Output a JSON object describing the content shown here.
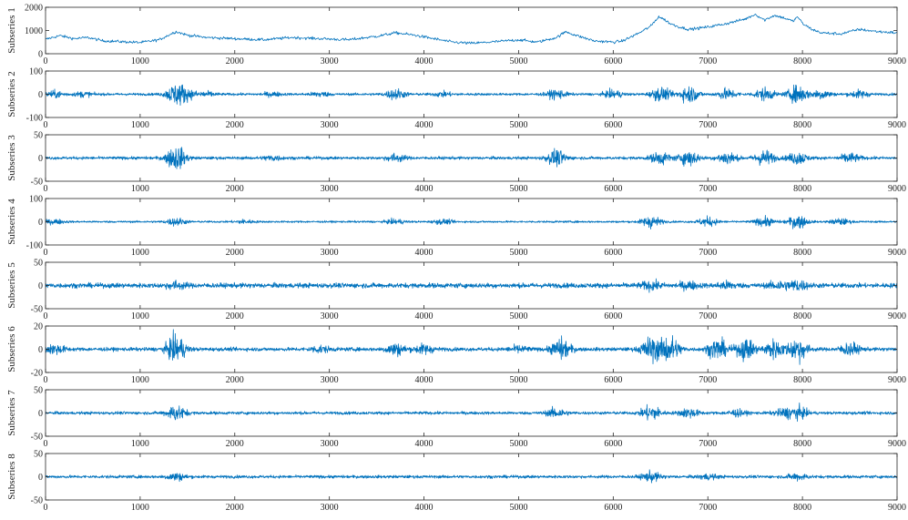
{
  "chart_data": [
    {
      "type": "line",
      "ylabel": "Subseries 1",
      "xlim": [
        0,
        9000
      ],
      "ylim": [
        0,
        2000
      ],
      "xticks": [
        "0",
        "1000",
        "2000",
        "3000",
        "4000",
        "5000",
        "6000",
        "7000",
        "8000",
        "9000"
      ],
      "yticks": [
        {
          "value": 0,
          "label": "0"
        },
        {
          "value": 1000,
          "label": "1000"
        },
        {
          "value": 2000,
          "label": "2000"
        }
      ],
      "line_color": "#0072BD",
      "series": [
        {
          "x": [
            0,
            150,
            300,
            450,
            600,
            800,
            1000,
            1200,
            1350,
            1380,
            1500,
            1700,
            2000,
            2300,
            2600,
            2900,
            3200,
            3500,
            3700,
            3900,
            4100,
            4300,
            4500,
            4700,
            5000,
            5200,
            5400,
            5500,
            5600,
            5800,
            6000,
            6100,
            6200,
            6300,
            6400,
            6480,
            6550,
            6600,
            6700,
            6800,
            7000,
            7200,
            7400,
            7500,
            7600,
            7700,
            7800,
            7900,
            7950,
            8000,
            8100,
            8200,
            8400,
            8600,
            8800,
            9000
          ],
          "y": [
            620,
            780,
            650,
            700,
            560,
            520,
            480,
            600,
            900,
            950,
            800,
            700,
            650,
            600,
            700,
            650,
            600,
            750,
            900,
            800,
            650,
            500,
            450,
            500,
            600,
            500,
            700,
            950,
            800,
            550,
            500,
            550,
            750,
            950,
            1200,
            1600,
            1450,
            1300,
            1150,
            1050,
            1150,
            1300,
            1500,
            1700,
            1450,
            1650,
            1550,
            1400,
            1600,
            1300,
            1050,
            900,
            850,
            1050,
            950,
            900
          ]
        }
      ],
      "noise": 60,
      "bursts": []
    },
    {
      "type": "line",
      "ylabel": "Subseries 2",
      "xlim": [
        0,
        9000
      ],
      "ylim": [
        -100,
        100
      ],
      "xticks": [
        "0",
        "1000",
        "2000",
        "3000",
        "4000",
        "5000",
        "6000",
        "7000",
        "8000",
        "9000"
      ],
      "yticks": [
        {
          "value": -100,
          "label": "-100"
        },
        {
          "value": 0,
          "label": "0"
        },
        {
          "value": 100,
          "label": "100"
        }
      ],
      "line_color": "#0072BD",
      "base_amplitude": 5,
      "bursts": [
        {
          "x": 100,
          "amp": 20
        },
        {
          "x": 400,
          "amp": 15
        },
        {
          "x": 1380,
          "amp": 70
        },
        {
          "x": 1500,
          "amp": 25
        },
        {
          "x": 1700,
          "amp": 15
        },
        {
          "x": 2400,
          "amp": 12
        },
        {
          "x": 2900,
          "amp": 15
        },
        {
          "x": 3700,
          "amp": 35
        },
        {
          "x": 4200,
          "amp": 15
        },
        {
          "x": 5400,
          "amp": 30
        },
        {
          "x": 6000,
          "amp": 25
        },
        {
          "x": 6500,
          "amp": 45
        },
        {
          "x": 6800,
          "amp": 55
        },
        {
          "x": 7200,
          "amp": 35
        },
        {
          "x": 7600,
          "amp": 40
        },
        {
          "x": 7950,
          "amp": 60
        },
        {
          "x": 8200,
          "amp": 30
        },
        {
          "x": 8600,
          "amp": 25
        }
      ]
    },
    {
      "type": "line",
      "ylabel": "Subseries 3",
      "xlim": [
        0,
        9000
      ],
      "ylim": [
        -50,
        50
      ],
      "xticks": [
        "0",
        "1000",
        "2000",
        "3000",
        "4000",
        "5000",
        "6000",
        "7000",
        "8000",
        "9000"
      ],
      "yticks": [
        {
          "value": -50,
          "label": "-50"
        },
        {
          "value": 0,
          "label": "0"
        },
        {
          "value": 50,
          "label": "50"
        }
      ],
      "line_color": "#0072BD",
      "base_amplitude": 3,
      "bursts": [
        {
          "x": 1380,
          "amp": 40
        },
        {
          "x": 2400,
          "amp": 8
        },
        {
          "x": 3700,
          "amp": 12
        },
        {
          "x": 5400,
          "amp": 25
        },
        {
          "x": 6500,
          "amp": 20
        },
        {
          "x": 6800,
          "amp": 25
        },
        {
          "x": 7200,
          "amp": 20
        },
        {
          "x": 7600,
          "amp": 25
        },
        {
          "x": 7950,
          "amp": 20
        },
        {
          "x": 8500,
          "amp": 15
        }
      ]
    },
    {
      "type": "line",
      "ylabel": "Subseries 4",
      "xlim": [
        0,
        9000
      ],
      "ylim": [
        -100,
        100
      ],
      "xticks": [
        "0",
        "1000",
        "2000",
        "3000",
        "4000",
        "5000",
        "6000",
        "7000",
        "8000",
        "9000"
      ],
      "yticks": [
        {
          "value": -100,
          "label": "-100"
        },
        {
          "value": 0,
          "label": "0"
        },
        {
          "value": 100,
          "label": "100"
        }
      ],
      "line_color": "#0072BD",
      "base_amplitude": 4,
      "bursts": [
        {
          "x": 100,
          "amp": 15
        },
        {
          "x": 1380,
          "amp": 25
        },
        {
          "x": 2100,
          "amp": 12
        },
        {
          "x": 3700,
          "amp": 15
        },
        {
          "x": 4200,
          "amp": 15
        },
        {
          "x": 6400,
          "amp": 40
        },
        {
          "x": 7000,
          "amp": 30
        },
        {
          "x": 7600,
          "amp": 30
        },
        {
          "x": 7950,
          "amp": 45
        },
        {
          "x": 8400,
          "amp": 20
        }
      ]
    },
    {
      "type": "line",
      "ylabel": "Subseries 5",
      "xlim": [
        0,
        9000
      ],
      "ylim": [
        -50,
        50
      ],
      "xticks": [
        "0",
        "1000",
        "2000",
        "3000",
        "4000",
        "5000",
        "6000",
        "7000",
        "8000",
        "9000"
      ],
      "yticks": [
        {
          "value": -50,
          "label": "-50"
        },
        {
          "value": 0,
          "label": "0"
        },
        {
          "value": 50,
          "label": "50"
        }
      ],
      "line_color": "#0072BD",
      "base_amplitude": 5,
      "bursts": [
        {
          "x": 1380,
          "amp": 10
        },
        {
          "x": 6400,
          "amp": 12
        },
        {
          "x": 6800,
          "amp": 10
        },
        {
          "x": 7200,
          "amp": 10
        },
        {
          "x": 7750,
          "amp": 12
        },
        {
          "x": 7950,
          "amp": 15
        }
      ]
    },
    {
      "type": "line",
      "ylabel": "Subseries 6",
      "xlim": [
        0,
        9000
      ],
      "ylim": [
        -20,
        20
      ],
      "xticks": [
        "0",
        "1000",
        "2000",
        "3000",
        "4000",
        "5000",
        "6000",
        "7000",
        "8000",
        "9000"
      ],
      "yticks": [
        {
          "value": -20,
          "label": "-20"
        },
        {
          "value": 0,
          "label": "0"
        },
        {
          "value": 20,
          "label": "20"
        }
      ],
      "line_color": "#0072BD",
      "base_amplitude": 1.5,
      "bursts": [
        {
          "x": 100,
          "amp": 6
        },
        {
          "x": 1380,
          "amp": 18
        },
        {
          "x": 2900,
          "amp": 4
        },
        {
          "x": 3700,
          "amp": 8
        },
        {
          "x": 4000,
          "amp": 6
        },
        {
          "x": 5000,
          "amp": 4
        },
        {
          "x": 5450,
          "amp": 14
        },
        {
          "x": 6400,
          "amp": 16
        },
        {
          "x": 6600,
          "amp": 18
        },
        {
          "x": 7100,
          "amp": 14
        },
        {
          "x": 7400,
          "amp": 14
        },
        {
          "x": 7700,
          "amp": 12
        },
        {
          "x": 7950,
          "amp": 16
        },
        {
          "x": 8500,
          "amp": 8
        }
      ]
    },
    {
      "type": "line",
      "ylabel": "Subseries 7",
      "xlim": [
        0,
        9000
      ],
      "ylim": [
        -50,
        50
      ],
      "xticks": [
        "0",
        "1000",
        "2000",
        "3000",
        "4000",
        "5000",
        "6000",
        "7000",
        "8000",
        "9000"
      ],
      "yticks": [
        {
          "value": -50,
          "label": "-50"
        },
        {
          "value": 0,
          "label": "0"
        },
        {
          "value": 50,
          "label": "50"
        }
      ],
      "line_color": "#0072BD",
      "base_amplitude": 3,
      "bursts": [
        {
          "x": 1380,
          "amp": 25
        },
        {
          "x": 5400,
          "amp": 15
        },
        {
          "x": 6400,
          "amp": 25
        },
        {
          "x": 6800,
          "amp": 15
        },
        {
          "x": 7300,
          "amp": 10
        },
        {
          "x": 7800,
          "amp": 12
        },
        {
          "x": 7950,
          "amp": 20
        }
      ]
    },
    {
      "type": "line",
      "ylabel": "Subseries 8",
      "xlim": [
        0,
        9000
      ],
      "ylim": [
        -50,
        50
      ],
      "xticks": [
        "0",
        "1000",
        "2000",
        "3000",
        "4000",
        "5000",
        "6000",
        "7000",
        "8000",
        "9000"
      ],
      "yticks": [
        {
          "value": -50,
          "label": "-50"
        },
        {
          "value": 0,
          "label": "0"
        },
        {
          "value": 50,
          "label": "50"
        }
      ],
      "line_color": "#0072BD",
      "base_amplitude": 3,
      "bursts": [
        {
          "x": 1380,
          "amp": 12
        },
        {
          "x": 6400,
          "amp": 15
        },
        {
          "x": 7000,
          "amp": 8
        },
        {
          "x": 7950,
          "amp": 10
        }
      ]
    }
  ]
}
